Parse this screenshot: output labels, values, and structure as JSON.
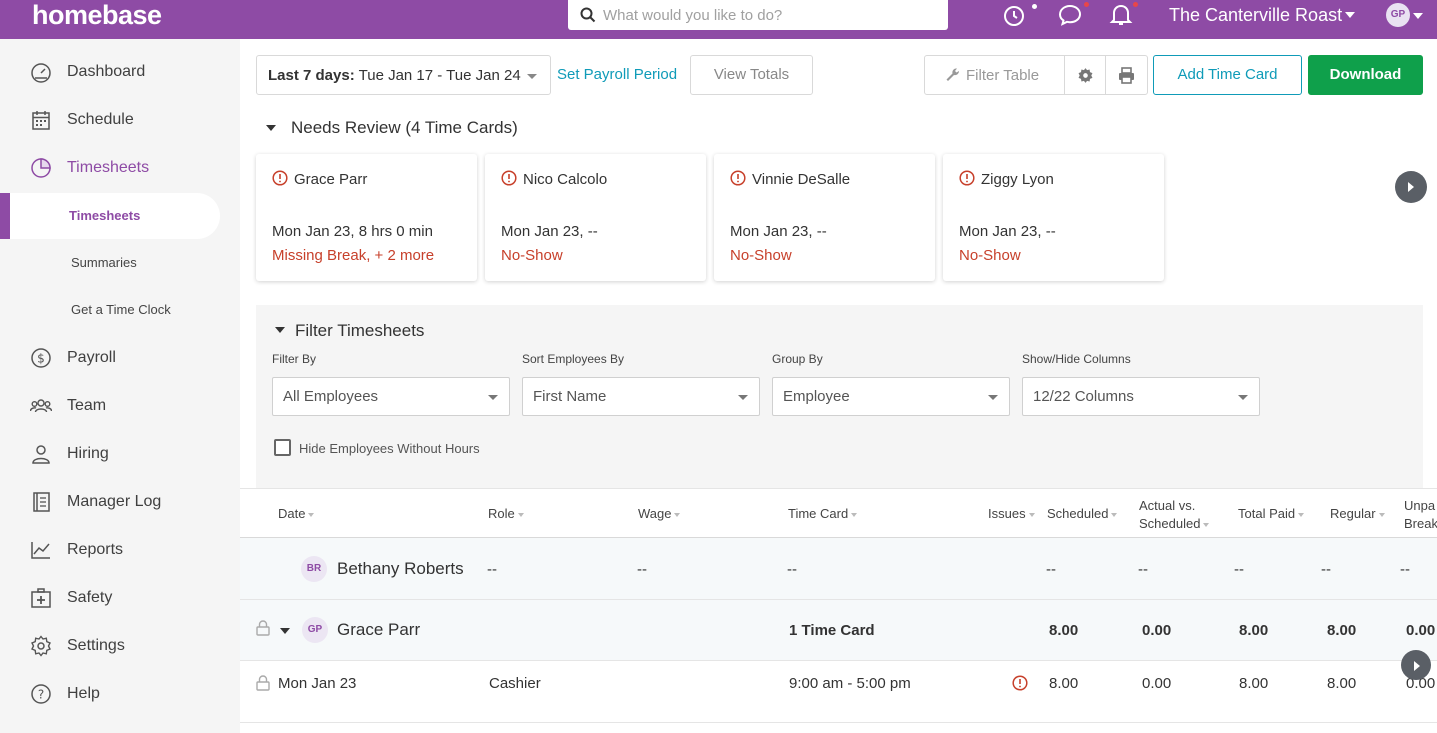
{
  "app": {
    "logo": "homebase",
    "search_placeholder": "What would you like to do?",
    "location": "The Canterville Roast",
    "user_initials": "GP"
  },
  "sidebar": {
    "items": [
      {
        "label": "Dashboard",
        "icon": "dashboard-icon"
      },
      {
        "label": "Schedule",
        "icon": "calendar-icon"
      },
      {
        "label": "Timesheets",
        "icon": "clock-icon"
      },
      {
        "label": "Payroll",
        "icon": "dollar-icon"
      },
      {
        "label": "Team",
        "icon": "team-icon"
      },
      {
        "label": "Hiring",
        "icon": "person-icon"
      },
      {
        "label": "Manager Log",
        "icon": "notebook-icon"
      },
      {
        "label": "Reports",
        "icon": "chart-icon"
      },
      {
        "label": "Safety",
        "icon": "first-aid-icon"
      },
      {
        "label": "Settings",
        "icon": "gear-icon"
      },
      {
        "label": "Help",
        "icon": "help-icon"
      }
    ],
    "subitems": [
      "Timesheets",
      "Summaries",
      "Get a Time Clock"
    ]
  },
  "toolbar": {
    "date_prefix": "Last 7 days:",
    "date_range": "Tue Jan 17 - Tue Jan 24",
    "set_payroll": "Set Payroll Period",
    "view_totals": "View Totals",
    "filter_table": "Filter Table",
    "add_time_card": "Add Time Card",
    "download": "Download"
  },
  "needs_review": {
    "title": "Needs Review (4 Time Cards)",
    "cards": [
      {
        "name": "Grace Parr",
        "when": "Mon Jan 23, 8 hrs 0 min",
        "issue": "Missing Break, + 2 more"
      },
      {
        "name": "Nico Calcolo",
        "when": "Mon Jan 23, --",
        "issue": "No-Show"
      },
      {
        "name": "Vinnie DeSalle",
        "when": "Mon Jan 23, --",
        "issue": "No-Show"
      },
      {
        "name": "Ziggy Lyon",
        "when": "Mon Jan 23, --",
        "issue": "No-Show"
      }
    ]
  },
  "filters": {
    "title": "Filter Timesheets",
    "filter_by": {
      "label": "Filter By",
      "value": "All Employees"
    },
    "sort_by": {
      "label": "Sort Employees By",
      "value": "First Name"
    },
    "group_by": {
      "label": "Group By",
      "value": "Employee"
    },
    "columns": {
      "label": "Show/Hide Columns",
      "value": "12/22 Columns"
    },
    "hide_without_hours": "Hide Employees Without Hours"
  },
  "table": {
    "headers": {
      "date": "Date",
      "role": "Role",
      "wage": "Wage",
      "time_card": "Time Card",
      "issues": "Issues",
      "scheduled": "Scheduled",
      "actual_vs_1": "Actual vs.",
      "actual_vs_2": "Scheduled",
      "total_paid": "Total Paid",
      "regular": "Regular",
      "unpaid_1": "Unpa",
      "unpaid_2": "Break"
    },
    "rows": {
      "bethany": {
        "initials": "BR",
        "name": "Bethany Roberts",
        "role": "--",
        "wage": "--",
        "time_card": "--",
        "scheduled": "--",
        "actual": "--",
        "total": "--",
        "regular": "--",
        "unpaid": "--"
      },
      "grace": {
        "initials": "GP",
        "name": "Grace Parr",
        "time_card": "1 Time Card",
        "scheduled": "8.00",
        "actual": "0.00",
        "total": "8.00",
        "regular": "8.00",
        "unpaid": "0.00"
      },
      "grace_day": {
        "date": "Mon Jan 23",
        "role": "Cashier",
        "time_card": "9:00 am - 5:00 pm",
        "scheduled": "8.00",
        "actual": "0.00",
        "total": "8.00",
        "regular": "8.00",
        "unpaid": "0.00"
      }
    }
  }
}
